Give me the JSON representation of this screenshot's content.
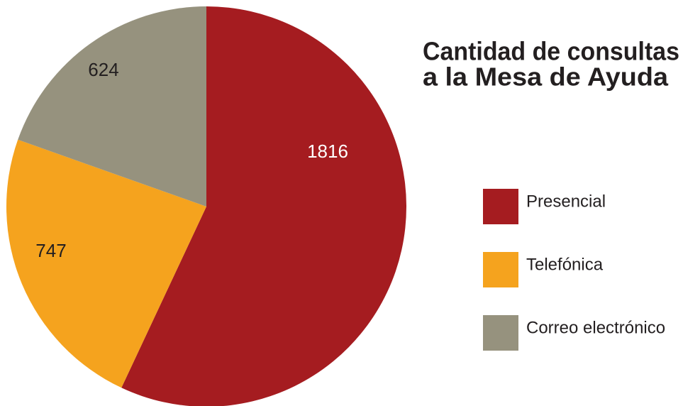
{
  "chart_data": {
    "type": "pie",
    "title": [
      "Cantidad de consultas",
      "a la Mesa de Ayuda"
    ],
    "categories": [
      "Presencial",
      "Telefónica",
      "Correo electrónico"
    ],
    "values": [
      1816,
      747,
      624
    ],
    "colors": [
      "#a51c20",
      "#f5a31e",
      "#96927e"
    ],
    "legend": "right"
  }
}
